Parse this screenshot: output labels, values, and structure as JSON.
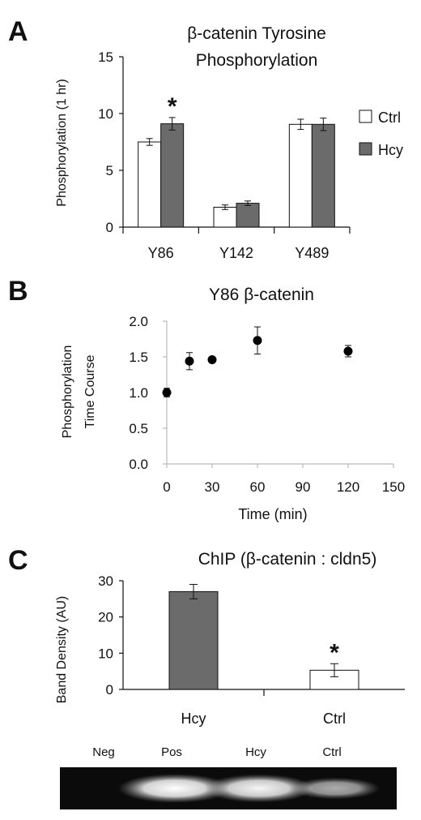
{
  "chart_data": [
    {
      "panel": "A",
      "type": "bar",
      "title": [
        "β-catenin Tyrosine",
        "Phosphorylation"
      ],
      "ylabel": "Phosphorylation (1 hr)",
      "xlabel": "",
      "ylim": [
        0,
        15
      ],
      "yticks": [
        "0",
        "5",
        "10",
        "15"
      ],
      "categories": [
        "Y86",
        "Y142",
        "Y489"
      ],
      "series": [
        {
          "name": "Ctrl",
          "values": [
            7.5,
            1.75,
            9.05
          ],
          "errors": [
            0.3,
            0.2,
            0.45
          ],
          "color": "#ffffff"
        },
        {
          "name": "Hcy",
          "values": [
            9.1,
            2.1,
            9.05
          ],
          "errors": [
            0.55,
            0.2,
            0.55
          ],
          "color": "#6b6b6b"
        }
      ],
      "annotations": [
        {
          "category": "Y86",
          "series": "Hcy",
          "text": "*"
        }
      ],
      "legend": "right"
    },
    {
      "panel": "B",
      "type": "scatter",
      "title": "Y86 β-catenin",
      "ylabel": [
        "Phosphorylation",
        "Time Course"
      ],
      "xlabel": "Time (min)",
      "xlim": [
        0,
        150
      ],
      "ylim": [
        0,
        2
      ],
      "xticks": [
        "0",
        "30",
        "60",
        "90",
        "120",
        "150"
      ],
      "yticks": [
        "0.0",
        "0.5",
        "1.0",
        "1.5",
        "2.0"
      ],
      "x": [
        0,
        15,
        30,
        60,
        120
      ],
      "y": [
        1.0,
        1.44,
        1.46,
        1.73,
        1.58
      ],
      "errors": [
        0.06,
        0.12,
        0.02,
        0.19,
        0.08
      ],
      "color": "#000000"
    },
    {
      "panel": "C",
      "type": "bar",
      "title": "ChIP (β-catenin : cldn5)",
      "ylabel": "Band Density (AU)",
      "xlabel": "",
      "ylim": [
        0,
        30
      ],
      "yticks": [
        "0",
        "10",
        "20",
        "30"
      ],
      "categories": [
        "Hcy",
        "Ctrl"
      ],
      "values": [
        27,
        5.3
      ],
      "errors": [
        2.0,
        1.8
      ],
      "colors": [
        "#6b6b6b",
        "#ffffff"
      ],
      "annotations": [
        {
          "category": "Ctrl",
          "text": "*"
        }
      ]
    }
  ],
  "gel": {
    "lanes": [
      "Neg",
      "Pos",
      "Hcy",
      "Ctrl"
    ],
    "intensities": [
      0,
      1.0,
      0.95,
      0.55
    ]
  }
}
